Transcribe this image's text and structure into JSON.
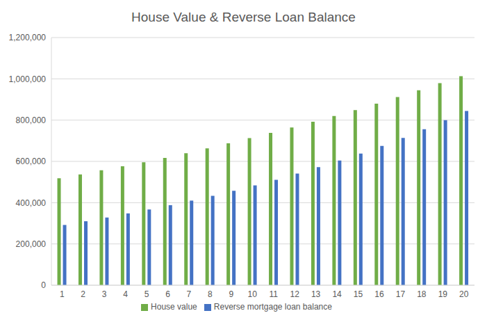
{
  "chart_data": {
    "type": "bar",
    "title": "House Value & Reverse Loan Balance",
    "categories": [
      "1",
      "2",
      "3",
      "4",
      "5",
      "6",
      "7",
      "8",
      "9",
      "10",
      "11",
      "12",
      "13",
      "14",
      "15",
      "16",
      "17",
      "18",
      "19",
      "20"
    ],
    "series": [
      {
        "name": "House value",
        "color": "#70ad47",
        "values": [
          518000,
          537000,
          557000,
          576000,
          596000,
          617000,
          640000,
          663000,
          688000,
          713000,
          738000,
          764000,
          792000,
          820000,
          849000,
          880000,
          912000,
          945000,
          979000,
          1013000
        ]
      },
      {
        "name": "Reverse mortgage loan balance",
        "color": "#4472c4",
        "values": [
          292000,
          310000,
          328000,
          348000,
          367000,
          388000,
          410000,
          433000,
          458000,
          484000,
          511000,
          541000,
          572000,
          604000,
          638000,
          675000,
          714000,
          756000,
          800000,
          844000
        ]
      }
    ],
    "ylim": [
      0,
      1200000
    ],
    "yticks": [
      0,
      {
        "value": 200000,
        "label": "200,000"
      },
      {
        "value": 400000,
        "label": "400,000"
      },
      {
        "value": 600000,
        "label": "600,000"
      },
      {
        "value": 800000,
        "label": "800,000"
      },
      {
        "value": 1000000,
        "label": "1,000,000"
      },
      {
        "value": 1200000,
        "label": "1,200,000"
      }
    ],
    "grid": true,
    "legend": "bottom"
  }
}
